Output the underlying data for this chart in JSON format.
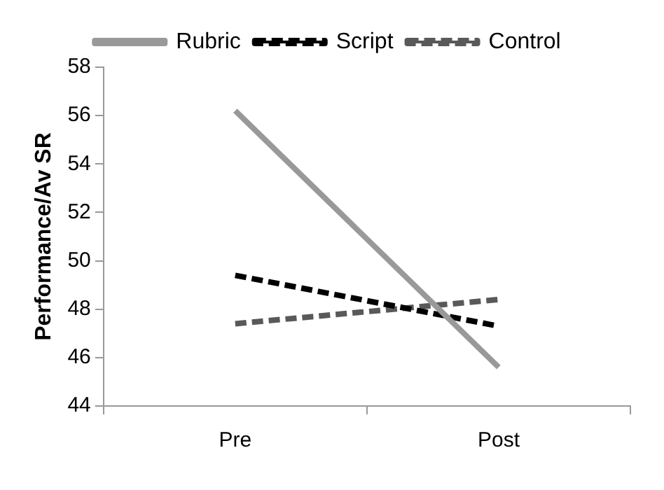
{
  "chart_data": {
    "type": "line",
    "ylabel": "Performance/Av SR",
    "categories": [
      "Pre",
      "Post"
    ],
    "series": [
      {
        "name": "Rubric",
        "color": "#999999",
        "values": [
          56.2,
          45.6
        ],
        "line_style": "solid"
      },
      {
        "name": "Script",
        "color": "#000000",
        "values": [
          49.4,
          47.3
        ],
        "line_style": "dashed"
      },
      {
        "name": "Control",
        "color": "#595959",
        "values": [
          47.4,
          48.4
        ],
        "line_style": "dashed"
      }
    ],
    "ylim": [
      44,
      58
    ],
    "yticks": [
      44,
      46,
      48,
      50,
      52,
      54,
      56,
      58
    ],
    "grid": false,
    "legend": "top",
    "marker": "none"
  }
}
